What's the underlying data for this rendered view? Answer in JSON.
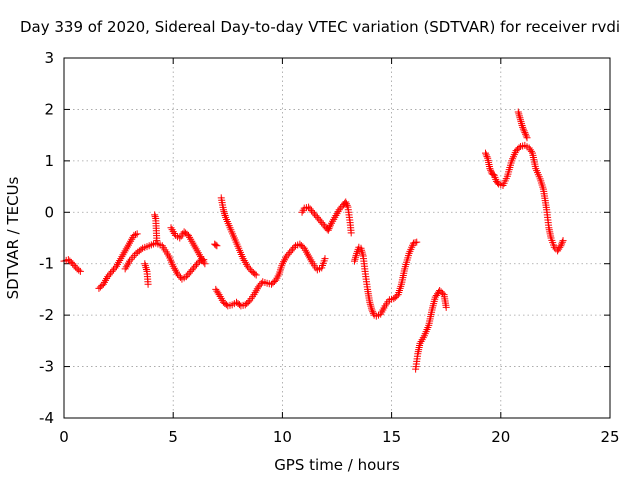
{
  "chart_data": {
    "type": "scatter",
    "title": "Day 339 of 2020, Sidereal Day-to-day VTEC variation (SDTVAR) for receiver rvdi",
    "xlabel": "GPS time / hours",
    "ylabel": "SDTVAR / TECUs",
    "xlim": [
      0,
      25
    ],
    "ylim": [
      -4,
      3
    ],
    "xticks": [
      0,
      5,
      10,
      15,
      20,
      25
    ],
    "yticks": [
      -4,
      -3,
      -2,
      -1,
      0,
      1,
      2,
      3
    ],
    "grid": true,
    "marker": "+",
    "marker_color": "#ff0000",
    "series": [
      {
        "points": [
          [
            0.0,
            -0.95
          ],
          [
            0.2,
            -0.92
          ],
          [
            0.4,
            -1.0
          ],
          [
            0.6,
            -1.1
          ],
          [
            0.75,
            -1.15
          ]
        ]
      },
      {
        "points": [
          [
            1.6,
            -1.48
          ],
          [
            1.8,
            -1.4
          ],
          [
            2.0,
            -1.25
          ],
          [
            2.2,
            -1.15
          ],
          [
            2.4,
            -1.05
          ],
          [
            2.6,
            -0.9
          ],
          [
            2.8,
            -0.75
          ],
          [
            3.0,
            -0.6
          ],
          [
            3.2,
            -0.45
          ],
          [
            3.35,
            -0.42
          ]
        ]
      },
      {
        "points": [
          [
            2.8,
            -1.1
          ],
          [
            3.0,
            -0.95
          ],
          [
            3.3,
            -0.8
          ],
          [
            3.6,
            -0.7
          ],
          [
            3.9,
            -0.65
          ],
          [
            4.2,
            -0.6
          ],
          [
            4.5,
            -0.65
          ],
          [
            4.8,
            -0.85
          ],
          [
            5.0,
            -1.05
          ],
          [
            5.2,
            -1.2
          ],
          [
            5.4,
            -1.3
          ],
          [
            5.6,
            -1.25
          ],
          [
            5.8,
            -1.15
          ],
          [
            6.0,
            -1.05
          ],
          [
            6.2,
            -0.95
          ],
          [
            6.4,
            -0.92
          ]
        ]
      },
      {
        "points": [
          [
            3.7,
            -1.0
          ],
          [
            3.8,
            -1.15
          ],
          [
            3.85,
            -1.4
          ]
        ]
      },
      {
        "points": [
          [
            4.15,
            -0.05
          ],
          [
            4.2,
            -0.12
          ],
          [
            4.25,
            -0.55
          ]
        ]
      },
      {
        "points": [
          [
            4.9,
            -0.3
          ],
          [
            5.1,
            -0.45
          ],
          [
            5.3,
            -0.5
          ],
          [
            5.5,
            -0.38
          ],
          [
            5.7,
            -0.45
          ],
          [
            5.9,
            -0.6
          ],
          [
            6.1,
            -0.75
          ],
          [
            6.3,
            -0.9
          ],
          [
            6.45,
            -1.0
          ]
        ]
      },
      {
        "points": [
          [
            6.9,
            -0.62
          ],
          [
            7.0,
            -0.65
          ]
        ]
      },
      {
        "points": [
          [
            6.95,
            -1.5
          ],
          [
            7.1,
            -1.6
          ],
          [
            7.3,
            -1.75
          ],
          [
            7.5,
            -1.82
          ],
          [
            7.7,
            -1.8
          ],
          [
            7.9,
            -1.75
          ],
          [
            8.1,
            -1.82
          ],
          [
            8.3,
            -1.8
          ],
          [
            8.5,
            -1.72
          ],
          [
            8.7,
            -1.6
          ],
          [
            8.9,
            -1.45
          ],
          [
            9.1,
            -1.35
          ],
          [
            9.3,
            -1.38
          ],
          [
            9.5,
            -1.4
          ],
          [
            9.7,
            -1.32
          ],
          [
            9.85,
            -1.2
          ],
          [
            10.0,
            -1.0
          ],
          [
            10.2,
            -0.85
          ],
          [
            10.4,
            -0.75
          ],
          [
            10.6,
            -0.65
          ],
          [
            10.8,
            -0.62
          ],
          [
            11.0,
            -0.7
          ],
          [
            11.2,
            -0.85
          ],
          [
            11.4,
            -1.0
          ],
          [
            11.6,
            -1.12
          ],
          [
            11.8,
            -1.08
          ],
          [
            11.95,
            -0.9
          ]
        ]
      },
      {
        "points": [
          [
            7.2,
            0.28
          ],
          [
            7.3,
            0.05
          ],
          [
            7.4,
            -0.1
          ],
          [
            7.6,
            -0.3
          ],
          [
            7.8,
            -0.5
          ],
          [
            8.0,
            -0.7
          ],
          [
            8.2,
            -0.9
          ],
          [
            8.4,
            -1.05
          ],
          [
            8.6,
            -1.15
          ],
          [
            8.8,
            -1.22
          ]
        ]
      },
      {
        "points": [
          [
            10.9,
            0.0
          ],
          [
            11.0,
            0.08
          ],
          [
            11.2,
            0.1
          ],
          [
            11.4,
            0.0
          ],
          [
            11.6,
            -0.1
          ],
          [
            11.8,
            -0.2
          ],
          [
            12.0,
            -0.3
          ],
          [
            12.1,
            -0.35
          ],
          [
            12.2,
            -0.25
          ],
          [
            12.4,
            -0.1
          ],
          [
            12.6,
            0.05
          ],
          [
            12.8,
            0.15
          ],
          [
            12.9,
            0.2
          ],
          [
            13.0,
            0.1
          ],
          [
            13.1,
            -0.2
          ],
          [
            13.15,
            -0.4
          ]
        ]
      },
      {
        "points": [
          [
            13.3,
            -0.95
          ],
          [
            13.4,
            -0.8
          ],
          [
            13.5,
            -0.68
          ],
          [
            13.6,
            -0.7
          ],
          [
            13.7,
            -0.85
          ],
          [
            13.8,
            -1.2
          ],
          [
            13.9,
            -1.5
          ],
          [
            14.0,
            -1.75
          ],
          [
            14.1,
            -1.9
          ],
          [
            14.2,
            -2.0
          ],
          [
            14.3,
            -2.02
          ],
          [
            14.5,
            -1.98
          ],
          [
            14.7,
            -1.82
          ],
          [
            14.9,
            -1.7
          ],
          [
            15.1,
            -1.68
          ],
          [
            15.3,
            -1.6
          ],
          [
            15.45,
            -1.4
          ],
          [
            15.6,
            -1.1
          ],
          [
            15.8,
            -0.8
          ],
          [
            16.0,
            -0.6
          ],
          [
            16.15,
            -0.58
          ]
        ]
      },
      {
        "points": [
          [
            16.1,
            -3.05
          ],
          [
            16.2,
            -2.75
          ],
          [
            16.3,
            -2.55
          ],
          [
            16.5,
            -2.4
          ],
          [
            16.7,
            -2.2
          ],
          [
            16.85,
            -1.9
          ],
          [
            17.0,
            -1.65
          ],
          [
            17.2,
            -1.52
          ],
          [
            17.4,
            -1.6
          ],
          [
            17.5,
            -1.85
          ]
        ]
      },
      {
        "points": [
          [
            19.3,
            1.15
          ],
          [
            19.4,
            1.05
          ],
          [
            19.5,
            0.85
          ],
          [
            19.6,
            0.75
          ],
          [
            19.7,
            0.72
          ],
          [
            19.8,
            0.6
          ],
          [
            19.9,
            0.55
          ],
          [
            20.1,
            0.52
          ],
          [
            20.3,
            0.7
          ],
          [
            20.5,
            1.0
          ],
          [
            20.7,
            1.2
          ],
          [
            20.9,
            1.28
          ],
          [
            21.1,
            1.3
          ],
          [
            21.3,
            1.25
          ],
          [
            21.45,
            1.15
          ],
          [
            21.6,
            0.85
          ],
          [
            21.8,
            0.65
          ],
          [
            21.95,
            0.45
          ],
          [
            22.1,
            0.05
          ],
          [
            22.2,
            -0.3
          ],
          [
            22.3,
            -0.5
          ],
          [
            22.45,
            -0.68
          ],
          [
            22.6,
            -0.75
          ],
          [
            22.75,
            -0.65
          ],
          [
            22.85,
            -0.55
          ]
        ]
      },
      {
        "points": [
          [
            20.8,
            1.95
          ],
          [
            20.9,
            1.8
          ],
          [
            21.0,
            1.65
          ],
          [
            21.1,
            1.55
          ],
          [
            21.2,
            1.45
          ]
        ]
      }
    ]
  }
}
